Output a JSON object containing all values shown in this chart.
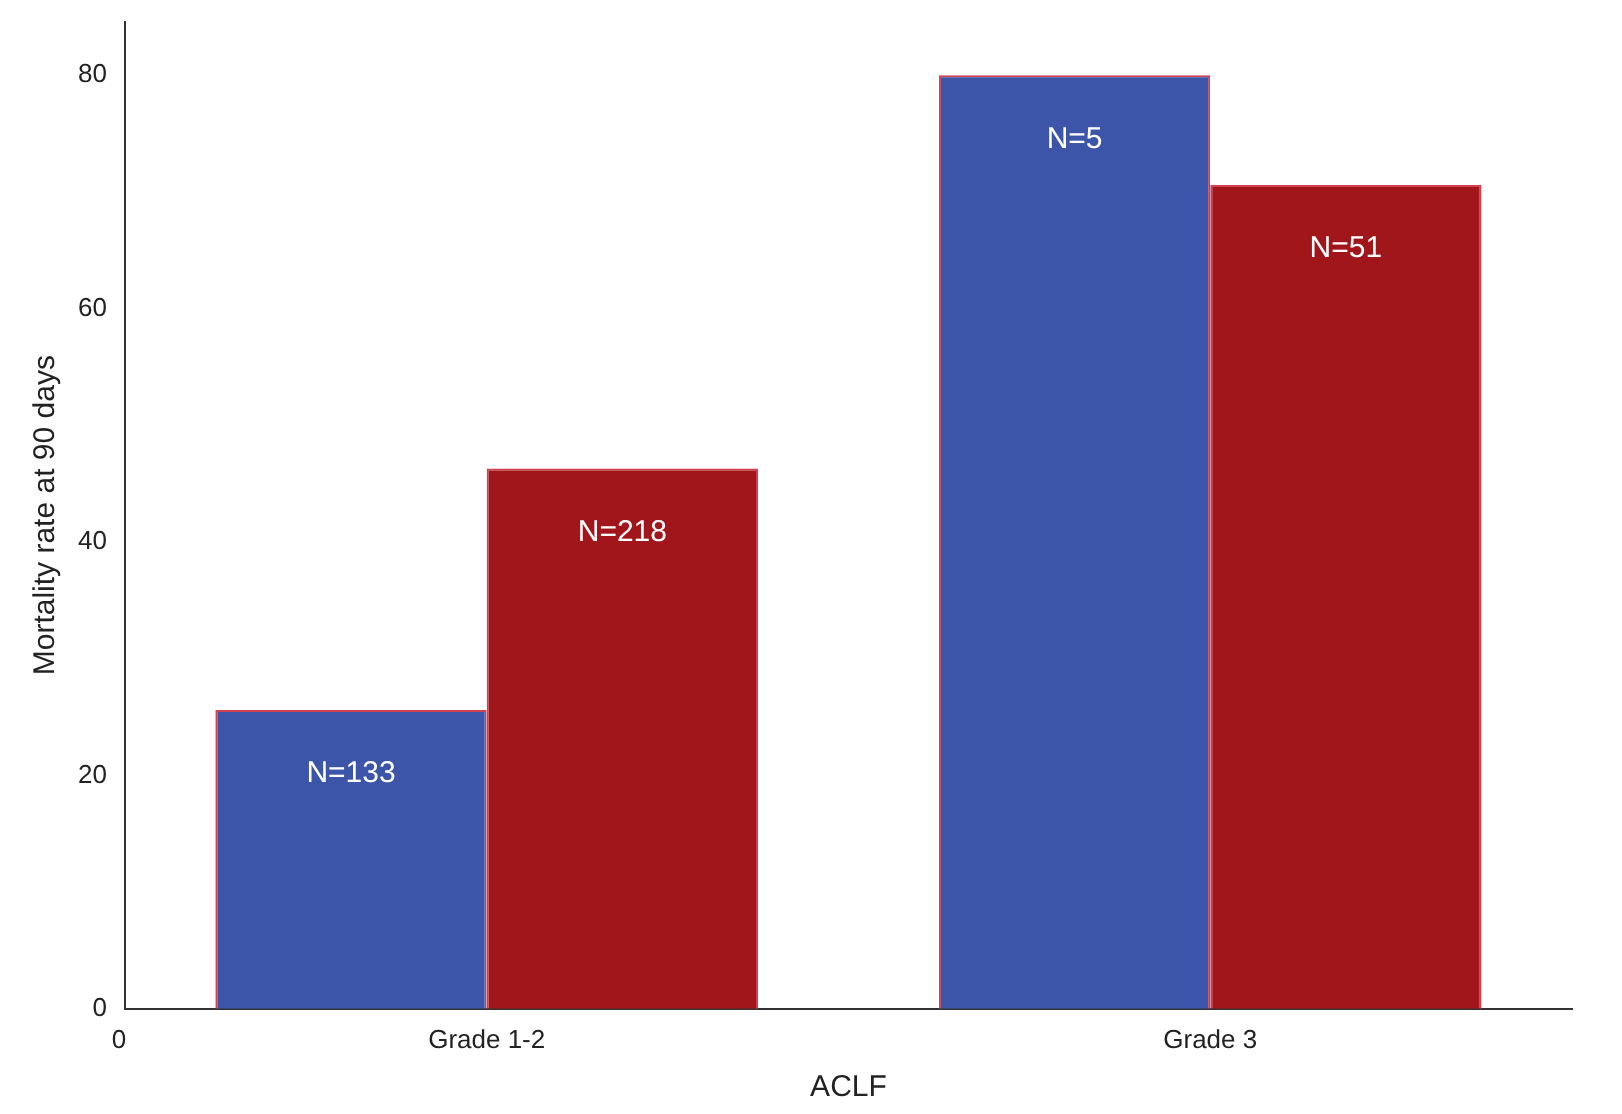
{
  "chart_data": {
    "type": "bar",
    "xlabel": "ACLF",
    "ylabel": "Mortality rate at 90 days",
    "categories": [
      "Grade 1-2",
      "Grade 3"
    ],
    "series": [
      {
        "color": "#3c55a8",
        "values": [
          25.6,
          80
        ]
      },
      {
        "color": "#a0161b",
        "values": [
          46.3,
          70.6
        ]
      }
    ],
    "ylim": [
      0,
      84.6
    ],
    "yticks": [
      0,
      20,
      40,
      60,
      80
    ],
    "grid": false,
    "legend": false,
    "annotations": [
      "N=133",
      "N=5",
      "N=218",
      "N=51",
      "0"
    ]
  }
}
